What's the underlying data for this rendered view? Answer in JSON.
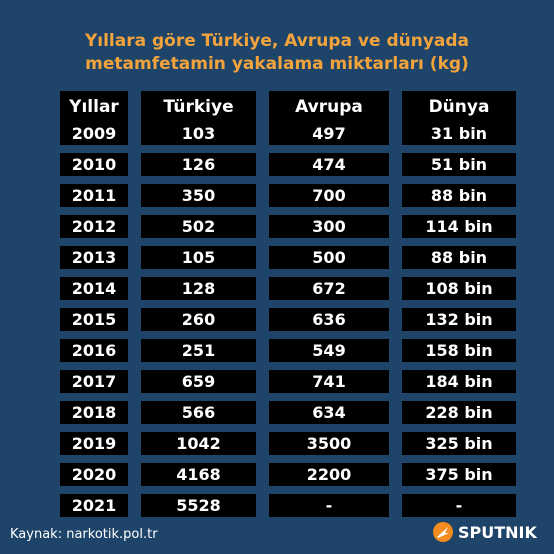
{
  "title": {
    "line1": "Yıllara göre Türkiye, Avrupa ve dünyada",
    "line2": "metamfetamin yakalama miktarları (kg)"
  },
  "table": {
    "headers": [
      "Yıllar",
      "Türkiye",
      "Avrupa",
      "Dünya"
    ],
    "rows": [
      [
        "2009",
        "103",
        "497",
        "31 bin"
      ],
      [
        "2010",
        "126",
        "474",
        "51 bin"
      ],
      [
        "2011",
        "350",
        "700",
        "88 bin"
      ],
      [
        "2012",
        "502",
        "300",
        "114 bin"
      ],
      [
        "2013",
        "105",
        "500",
        "88 bin"
      ],
      [
        "2014",
        "128",
        "672",
        "108 bin"
      ],
      [
        "2015",
        "260",
        "636",
        "132 bin"
      ],
      [
        "2016",
        "251",
        "549",
        "158 bin"
      ],
      [
        "2017",
        "659",
        "741",
        "184 bin"
      ],
      [
        "2018",
        "566",
        "634",
        "228 bin"
      ],
      [
        "2019",
        "1042",
        "3500",
        "325 bin"
      ],
      [
        "2020",
        "4168",
        "2200",
        "375 bin"
      ],
      [
        "2021",
        "5528",
        "-",
        "-"
      ]
    ]
  },
  "footer": {
    "source": "Kaynak: narkotik.pol.tr",
    "brand": "SPUTNIK",
    "brand_color": "#f28b20"
  },
  "colors": {
    "background": "#1f4469",
    "title": "#f2a33c",
    "cell_bg": "#000000",
    "cell_text": "#ffffff"
  }
}
